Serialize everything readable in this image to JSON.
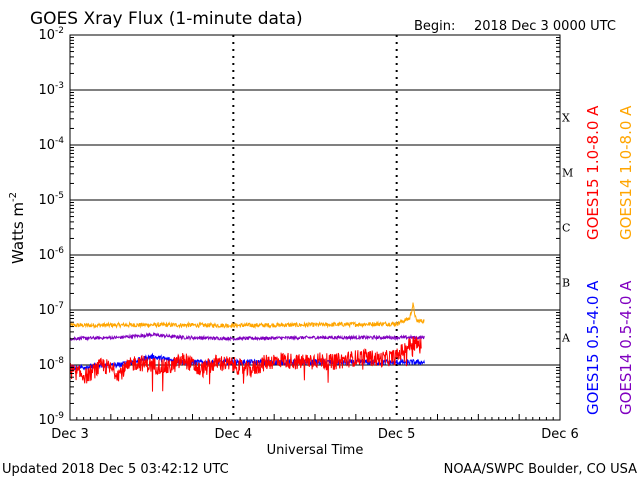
{
  "chart_data": {
    "type": "line",
    "title": "GOES Xray Flux (1-minute data)",
    "begin_label": "Begin:",
    "begin_value": "2018 Dec 3 0000 UTC",
    "xlabel": "Universal Time",
    "ylabel_base": "Watts m",
    "ylabel_exp": "-2",
    "x_range_days": [
      0,
      3
    ],
    "x_ticks": [
      {
        "label": "Dec 3",
        "day": 0
      },
      {
        "label": "Dec 4",
        "day": 1
      },
      {
        "label": "Dec 5",
        "day": 2
      },
      {
        "label": "Dec 6",
        "day": 3
      }
    ],
    "y_scale": "log",
    "y_range": [
      1e-09,
      0.01
    ],
    "y_ticks": [
      {
        "base": "10",
        "exp": "-2",
        "log": -2
      },
      {
        "base": "10",
        "exp": "-3",
        "log": -3
      },
      {
        "base": "10",
        "exp": "-4",
        "log": -4
      },
      {
        "base": "10",
        "exp": "-5",
        "log": -5
      },
      {
        "base": "10",
        "exp": "-6",
        "log": -6
      },
      {
        "base": "10",
        "exp": "-7",
        "log": -7
      },
      {
        "base": "10",
        "exp": "-8",
        "log": -8
      },
      {
        "base": "10",
        "exp": "-9",
        "log": -9
      }
    ],
    "flare_classes": [
      {
        "label": "X",
        "log_mid": -3.5
      },
      {
        "label": "M",
        "log_mid": -4.5
      },
      {
        "label": "C",
        "log_mid": -5.5
      },
      {
        "label": "B",
        "log_mid": -6.5
      },
      {
        "label": "A",
        "log_mid": -7.5
      }
    ],
    "series": [
      {
        "name": "GOES15 1.0-8.0 A",
        "color": "#ff0000",
        "end_day": 2.15,
        "x": [
          0,
          0.1,
          0.2,
          0.3,
          0.4,
          0.5,
          0.6,
          0.7,
          0.8,
          0.9,
          1,
          1.1,
          1.2,
          1.3,
          1.4,
          1.5,
          1.6,
          1.7,
          1.8,
          1.9,
          2,
          2.05,
          2.1,
          2.15
        ],
        "y_log": [
          -8.1,
          -8.2,
          -8.0,
          -8.15,
          -7.95,
          -8.0,
          -8.05,
          -7.9,
          -8.1,
          -7.95,
          -8.0,
          -8.1,
          -7.95,
          -7.9,
          -7.95,
          -7.9,
          -7.95,
          -7.9,
          -7.85,
          -7.9,
          -7.85,
          -7.7,
          -7.6,
          -7.65
        ],
        "noise": 0.15
      },
      {
        "name": "GOES14 1.0-8.0 A",
        "color": "#ffa500",
        "end_day": 2.17,
        "x": [
          0,
          0.5,
          1,
          1.5,
          2,
          2.08,
          2.1,
          2.12,
          2.17
        ],
        "y_log": [
          -7.28,
          -7.27,
          -7.28,
          -7.27,
          -7.25,
          -7.15,
          -6.9,
          -7.2,
          -7.2
        ],
        "noise": 0.04
      },
      {
        "name": "GOES15 0.5-4.0 A",
        "color": "#0000ff",
        "end_day": 2.17,
        "x": [
          0,
          0.3,
          0.5,
          0.7,
          1,
          1.5,
          2,
          2.17
        ],
        "y_log": [
          -8.05,
          -8.0,
          -7.85,
          -7.95,
          -7.95,
          -7.95,
          -7.95,
          -7.95
        ],
        "noise": 0.05
      },
      {
        "name": "GOES14 0.5-4.0 A",
        "color": "#8000c0",
        "end_day": 2.17,
        "x": [
          0,
          0.3,
          0.5,
          0.7,
          1,
          1.5,
          2,
          2.17
        ],
        "y_log": [
          -7.52,
          -7.5,
          -7.45,
          -7.5,
          -7.52,
          -7.5,
          -7.5,
          -7.5
        ],
        "noise": 0.03
      }
    ]
  },
  "footer": {
    "updated": "Updated 2018 Dec  5 03:42:12 UTC",
    "source": "NOAA/SWPC Boulder, CO USA"
  }
}
